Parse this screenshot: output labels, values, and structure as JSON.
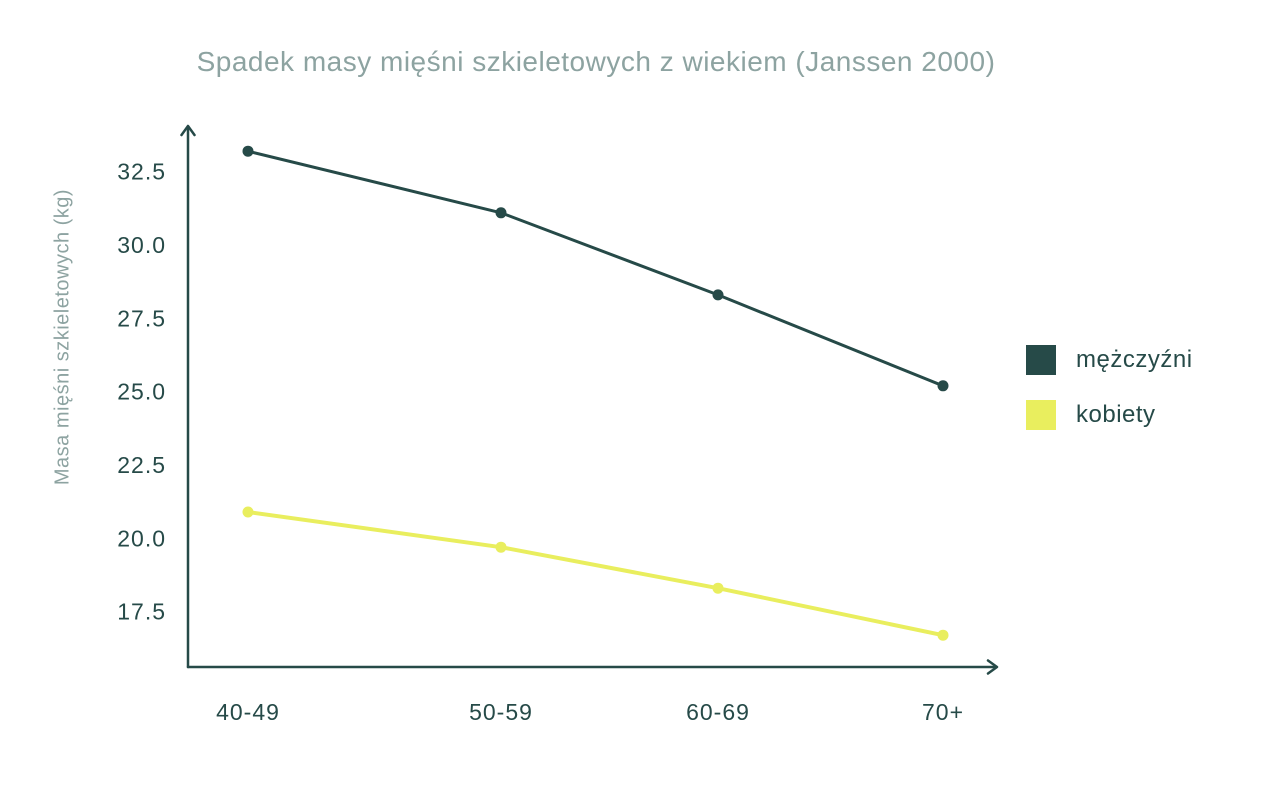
{
  "page": {
    "background": "#ffffff"
  },
  "chart_data": {
    "type": "line",
    "title": "Spadek masy mięśni szkieletowych z wiekiem (Janssen 2000)",
    "xlabel": "",
    "ylabel": "Masa mięśni szkieletowych (kg)",
    "categories": [
      "40-49",
      "50-59",
      "60-69",
      "70+"
    ],
    "series": [
      {
        "name": "mężczyźni",
        "color": "#264a48",
        "values": [
          33.2,
          31.1,
          28.3,
          25.2
        ]
      },
      {
        "name": "kobiety",
        "color": "#e9ee5e",
        "values": [
          20.9,
          19.7,
          18.3,
          16.7
        ]
      }
    ],
    "yticks": [
      {
        "label": "32.5",
        "value": 32.5
      },
      {
        "label": "30.0",
        "value": 30.0
      },
      {
        "label": "27.5",
        "value": 27.5
      },
      {
        "label": "25.0",
        "value": 25.0
      },
      {
        "label": "22.5",
        "value": 22.5
      },
      {
        "label": "20.0",
        "value": 20.0
      },
      {
        "label": "17.5",
        "value": 17.5
      }
    ],
    "ylim": [
      15.6,
      34.1
    ],
    "grid": false,
    "legend_position": "right",
    "title_color": "#8da3a1",
    "axis_color": "#264a48"
  }
}
